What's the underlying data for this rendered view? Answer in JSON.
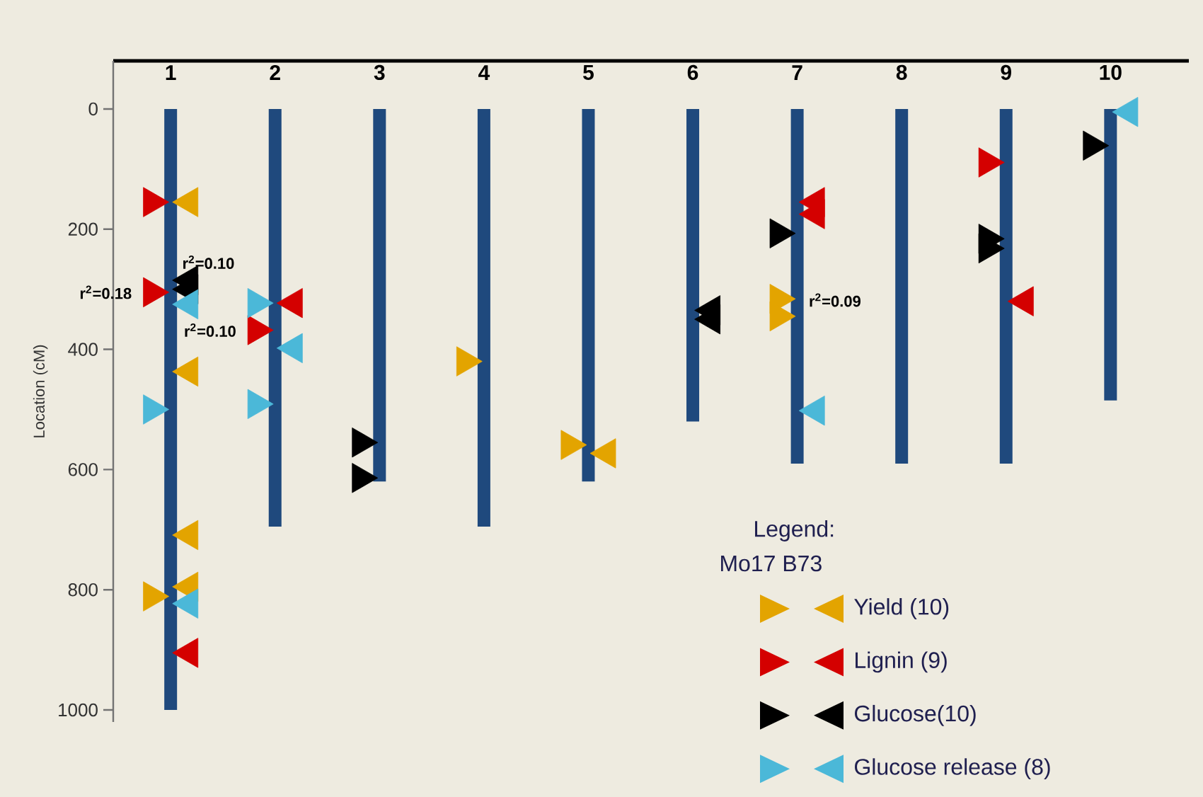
{
  "chart_data": {
    "type": "bar",
    "ylabel": "Location (cM)",
    "legend": "bottom right",
    "legend_title": "Legend:",
    "marker": "triangle",
    "x": [
      1,
      2,
      3,
      4,
      5,
      6,
      7,
      8,
      9,
      10
    ],
    "xlim": [
      0.45,
      10.75
    ],
    "xticks": [
      1,
      2,
      3,
      4,
      5,
      6,
      7,
      8,
      9,
      10
    ],
    "ylim": [
      1020,
      -80
    ],
    "yticks": [
      0,
      200,
      400,
      600,
      800,
      1000
    ],
    "series": [
      {
        "color": "#1f497d",
        "values": [
          1000,
          695,
          620,
          695,
          620,
          520,
          590,
          590,
          590,
          485
        ]
      },
      {
        "type": "scatter",
        "name": "Yield (10)",
        "color": "#e3a400",
        "x": [
          0.82,
          3.82,
          4.82,
          6.82,
          6.82
        ],
        "values": [
          811,
          420,
          559,
          316,
          345
        ]
      },
      {
        "type": "scatter",
        "color": "#e3a400",
        "x": [
          1.18,
          1.18,
          1.18,
          1.18,
          5.18
        ],
        "values": [
          155,
          437,
          709,
          795,
          573
        ]
      },
      {
        "type": "scatter",
        "name": "Lignin (9)",
        "color": "#d40000",
        "x": [
          0.82,
          0.82,
          1.82,
          8.82
        ],
        "values": [
          155,
          305,
          368,
          89
        ]
      },
      {
        "type": "scatter",
        "color": "#d40000",
        "x": [
          1.18,
          2.18,
          7.18,
          7.18,
          9.18
        ],
        "values": [
          905,
          323,
          155,
          175,
          320
        ]
      },
      {
        "type": "scatter",
        "name": "Glucose(10)",
        "color": "#000000",
        "x": [
          2.82,
          2.82,
          6.82,
          8.82,
          8.82,
          9.82
        ],
        "values": [
          555,
          614,
          207,
          216,
          232,
          61
        ]
      },
      {
        "type": "scatter",
        "color": "#000000",
        "x": [
          1.18,
          1.18,
          6.18,
          6.18
        ],
        "values": [
          285,
          300,
          335,
          350
        ]
      },
      {
        "type": "scatter",
        "name": "Glucose release (8)",
        "color": "#4bb8d8",
        "x": [
          0.82,
          1.82,
          1.82
        ],
        "values": [
          500,
          323,
          491
        ]
      },
      {
        "type": "scatter",
        "color": "#4bb8d8",
        "x": [
          1.18,
          1.18,
          2.18,
          7.18,
          10.18
        ],
        "values": [
          325,
          823,
          398,
          502,
          5
        ]
      }
    ],
    "annotations": [
      {
        "text": "r$^{2}$=0.18",
        "x": 0.82,
        "y": 305
      },
      {
        "text": "r$^{2}$=0.10",
        "x": 1,
        "y": 255
      },
      {
        "text": "r$^{2}$=0.10",
        "x": 1.82,
        "y": 368
      },
      {
        "text": "r$^{2}$=0.09",
        "x": 7,
        "y": 318
      },
      "Mo17  B73"
    ]
  }
}
